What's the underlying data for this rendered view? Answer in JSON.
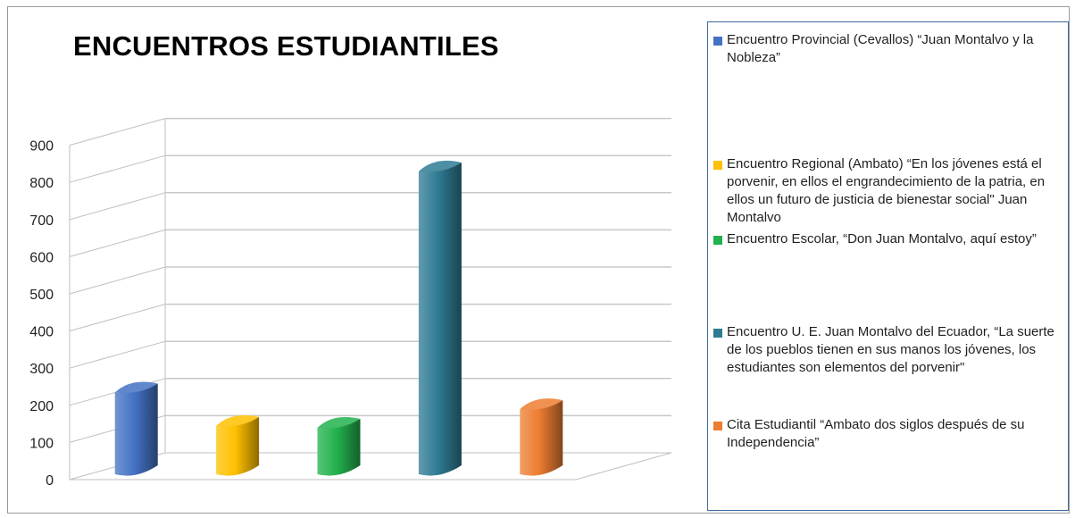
{
  "chart_data": {
    "type": "bar",
    "title": "ENCUENTROS ESTUDIANTILES",
    "ylim": [
      0,
      900
    ],
    "yticks": [
      "0",
      "100",
      "200",
      "300",
      "400",
      "500",
      "600",
      "700",
      "800",
      "900"
    ],
    "grid": true,
    "legend_position": "right",
    "series": [
      {
        "name": "Encuentro Provincial (Cevallos) “Juan Montalvo y la Nobleza”",
        "value": 220,
        "color": "#4472c4"
      },
      {
        "name": "Encuentro Regional (Ambato) “En los jóvenes está el porvenir, en ellos el engrandecimiento de la patria, en ellos un futuro de justicia de bienestar social\" Juan Montalvo",
        "value": 130,
        "color": "#ffc000"
      },
      {
        "name": "Encuentro Escolar, “Don Juan Montalvo, aquí estoy”",
        "value": 125,
        "color": "#22b14c"
      },
      {
        "name": "Encuentro U. E. Juan Montalvo del Ecuador, “La suerte de los pueblos tienen en sus manos los jóvenes, los estudiantes son elementos del porvenir\"",
        "value": 815,
        "color": "#2e7b93"
      },
      {
        "name": "Cita Estudiantil “Ambato dos siglos después de su Independencia”",
        "value": 175,
        "color": "#ed7d31"
      }
    ]
  }
}
